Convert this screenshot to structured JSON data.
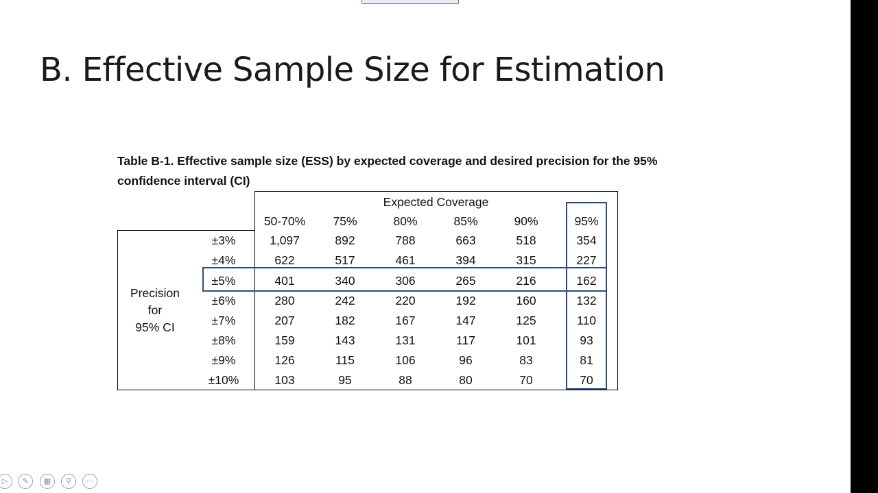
{
  "slide": {
    "title": "B. Effective Sample Size for Estimation",
    "caption": "Table B-1. Effective sample size (ESS) by expected coverage and desired precision for the 95% confidence interval (CI)"
  },
  "table": {
    "group_header": "Expected Coverage",
    "columns": [
      "50-70%",
      "75%",
      "80%",
      "85%",
      "90%",
      "95%"
    ],
    "row_group_label": [
      "Precision",
      "for",
      "95% CI"
    ],
    "rows": [
      {
        "label": "±3%",
        "values": [
          "1,097",
          "892",
          "788",
          "663",
          "518",
          "354"
        ]
      },
      {
        "label": "±4%",
        "values": [
          "622",
          "517",
          "461",
          "394",
          "315",
          "227"
        ]
      },
      {
        "label": "±5%",
        "values": [
          "401",
          "340",
          "306",
          "265",
          "216",
          "162"
        ]
      },
      {
        "label": "±6%",
        "values": [
          "280",
          "242",
          "220",
          "192",
          "160",
          "132"
        ]
      },
      {
        "label": "±7%",
        "values": [
          "207",
          "182",
          "167",
          "147",
          "125",
          "110"
        ]
      },
      {
        "label": "±8%",
        "values": [
          "159",
          "143",
          "131",
          "117",
          "101",
          "93"
        ]
      },
      {
        "label": "±9%",
        "values": [
          "126",
          "115",
          "106",
          "96",
          "83",
          "81"
        ]
      },
      {
        "label": "±10%",
        "values": [
          "103",
          "95",
          "88",
          "80",
          "70",
          "70"
        ]
      }
    ],
    "highlight_color": "#2f4a7a"
  },
  "toolbar": {
    "icons": [
      "play-icon",
      "pen-icon",
      "slides-grid-icon",
      "zoom-icon",
      "more-icon"
    ]
  }
}
